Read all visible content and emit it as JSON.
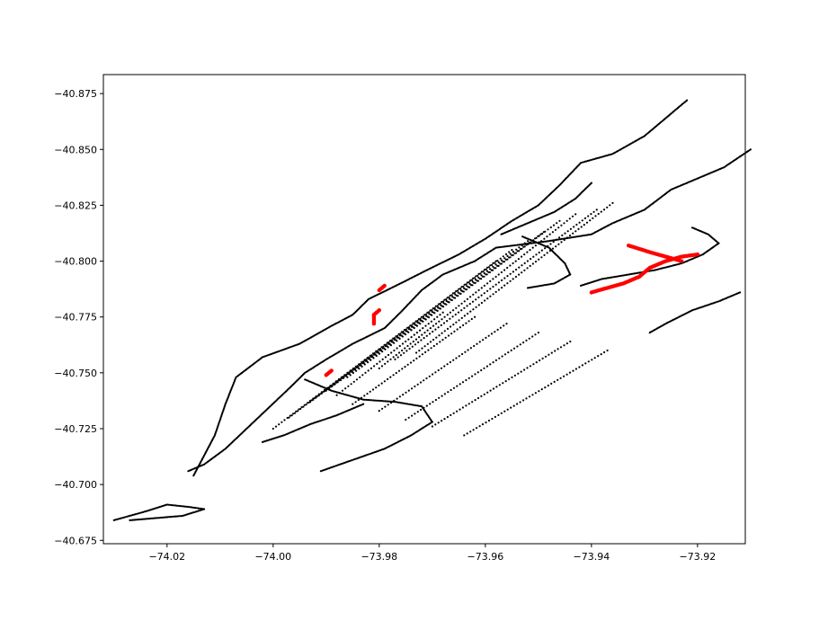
{
  "chart_data": {
    "type": "scatter",
    "title": "",
    "xlabel": "",
    "ylabel": "",
    "xlim": [
      -74.032,
      -73.911
    ],
    "ylim": [
      -40.6735,
      -40.8835
    ],
    "y_inverted": true,
    "grid": false,
    "xticks": [
      {
        "value": -74.02,
        "label": "−74.02"
      },
      {
        "value": -74.0,
        "label": "−74.00"
      },
      {
        "value": -73.98,
        "label": "−73.98"
      },
      {
        "value": -73.96,
        "label": "−73.96"
      },
      {
        "value": -73.94,
        "label": "−73.94"
      },
      {
        "value": -73.92,
        "label": "−73.92"
      }
    ],
    "yticks": [
      {
        "value": -40.875,
        "label": "−40.875"
      },
      {
        "value": -40.85,
        "label": "−40.850"
      },
      {
        "value": -40.825,
        "label": "−40.825"
      },
      {
        "value": -40.8,
        "label": "−40.800"
      },
      {
        "value": -40.775,
        "label": "−40.775"
      },
      {
        "value": -40.75,
        "label": "−40.750"
      },
      {
        "value": -40.725,
        "label": "−40.725"
      },
      {
        "value": -40.7,
        "label": "−40.700"
      },
      {
        "value": -40.675,
        "label": "−40.675"
      }
    ],
    "series": [
      {
        "color": "#000000",
        "paths": [
          [
            [
              -74.015,
              -40.704
            ],
            [
              -74.013,
              -40.713
            ],
            [
              -74.011,
              -40.722
            ],
            [
              -74.009,
              -40.736
            ],
            [
              -74.007,
              -40.748
            ],
            [
              -74.002,
              -40.757
            ],
            [
              -73.995,
              -40.763
            ],
            [
              -73.989,
              -40.771
            ],
            [
              -73.985,
              -40.776
            ],
            [
              -73.982,
              -40.783
            ],
            [
              -73.976,
              -40.79
            ],
            [
              -73.971,
              -40.796
            ],
            [
              -73.965,
              -40.803
            ],
            [
              -73.96,
              -40.81
            ],
            [
              -73.955,
              -40.818
            ],
            [
              -73.95,
              -40.825
            ],
            [
              -73.946,
              -40.834
            ],
            [
              -73.942,
              -40.844
            ],
            [
              -73.936,
              -40.848
            ],
            [
              -73.93,
              -40.856
            ],
            [
              -73.925,
              -40.866
            ],
            [
              -73.922,
              -40.872
            ]
          ],
          [
            [
              -73.91,
              -40.85
            ],
            [
              -73.915,
              -40.842
            ],
            [
              -73.92,
              -40.837
            ],
            [
              -73.925,
              -40.832
            ],
            [
              -73.93,
              -40.823
            ],
            [
              -73.936,
              -40.817
            ],
            [
              -73.94,
              -40.812
            ],
            [
              -73.948,
              -40.809
            ],
            [
              -73.958,
              -40.806
            ],
            [
              -73.962,
              -40.8
            ],
            [
              -73.968,
              -40.794
            ],
            [
              -73.972,
              -40.787
            ],
            [
              -73.976,
              -40.777
            ],
            [
              -73.979,
              -40.77
            ],
            [
              -73.985,
              -40.763
            ],
            [
              -73.99,
              -40.756
            ],
            [
              -73.994,
              -40.75
            ],
            [
              -73.997,
              -40.743
            ],
            [
              -74.001,
              -40.734
            ],
            [
              -74.005,
              -40.725
            ],
            [
              -74.009,
              -40.716
            ],
            [
              -74.013,
              -40.709
            ],
            [
              -74.016,
              -40.706
            ]
          ],
          [
            [
              -74.03,
              -40.684
            ],
            [
              -74.027,
              -40.686
            ],
            [
              -74.024,
              -40.688
            ],
            [
              -74.02,
              -40.691
            ],
            [
              -74.016,
              -40.69
            ],
            [
              -74.013,
              -40.689
            ],
            [
              -74.017,
              -40.686
            ],
            [
              -74.022,
              -40.685
            ],
            [
              -74.027,
              -40.684
            ]
          ],
          [
            [
              -73.994,
              -40.747
            ],
            [
              -73.989,
              -40.742
            ],
            [
              -73.983,
              -40.738
            ],
            [
              -73.977,
              -40.737
            ],
            [
              -73.972,
              -40.735
            ],
            [
              -73.97,
              -40.728
            ],
            [
              -73.974,
              -40.722
            ],
            [
              -73.979,
              -40.716
            ],
            [
              -73.985,
              -40.711
            ],
            [
              -73.991,
              -40.706
            ]
          ],
          [
            [
              -73.953,
              -40.811
            ],
            [
              -73.948,
              -40.806
            ],
            [
              -73.945,
              -40.799
            ],
            [
              -73.944,
              -40.794
            ],
            [
              -73.947,
              -40.79
            ],
            [
              -73.952,
              -40.788
            ]
          ],
          [
            [
              -73.921,
              -40.815
            ],
            [
              -73.918,
              -40.812
            ],
            [
              -73.916,
              -40.808
            ],
            [
              -73.919,
              -40.803
            ],
            [
              -73.923,
              -40.799
            ],
            [
              -73.928,
              -40.796
            ],
            [
              -73.933,
              -40.794
            ],
            [
              -73.938,
              -40.792
            ],
            [
              -73.942,
              -40.789
            ]
          ],
          [
            [
              -73.94,
              -40.835
            ],
            [
              -73.943,
              -40.828
            ],
            [
              -73.947,
              -40.822
            ],
            [
              -73.953,
              -40.816
            ],
            [
              -73.957,
              -40.812
            ]
          ],
          [
            [
              -73.912,
              -40.786
            ],
            [
              -73.916,
              -40.782
            ],
            [
              -73.921,
              -40.778
            ],
            [
              -73.926,
              -40.772
            ],
            [
              -73.929,
              -40.768
            ]
          ],
          [
            [
              -74.002,
              -40.719
            ],
            [
              -73.998,
              -40.722
            ],
            [
              -73.993,
              -40.727
            ],
            [
              -73.988,
              -40.731
            ],
            [
              -73.983,
              -40.736
            ]
          ]
        ],
        "dense_lines": [
          [
            [
              -74.0,
              -40.725
            ],
            [
              -73.958,
              -40.8
            ]
          ],
          [
            [
              -73.997,
              -40.73
            ],
            [
              -73.955,
              -40.805
            ]
          ],
          [
            [
              -73.993,
              -40.737
            ],
            [
              -73.952,
              -40.809
            ]
          ],
          [
            [
              -73.99,
              -40.742
            ],
            [
              -73.949,
              -40.813
            ]
          ],
          [
            [
              -73.986,
              -40.748
            ],
            [
              -73.946,
              -40.818
            ]
          ],
          [
            [
              -73.98,
              -40.752
            ],
            [
              -73.943,
              -40.821
            ]
          ],
          [
            [
              -73.977,
              -40.756
            ],
            [
              -73.939,
              -40.823
            ]
          ],
          [
            [
              -73.973,
              -40.759
            ],
            [
              -73.936,
              -40.826
            ]
          ],
          [
            [
              -73.988,
              -40.74
            ],
            [
              -73.968,
              -40.777
            ]
          ],
          [
            [
              -73.985,
              -40.736
            ],
            [
              -73.962,
              -40.775
            ]
          ],
          [
            [
              -73.98,
              -40.733
            ],
            [
              -73.956,
              -40.772
            ]
          ],
          [
            [
              -73.975,
              -40.729
            ],
            [
              -73.95,
              -40.768
            ]
          ],
          [
            [
              -73.97,
              -40.726
            ],
            [
              -73.944,
              -40.764
            ]
          ],
          [
            [
              -73.964,
              -40.722
            ],
            [
              -73.937,
              -40.76
            ]
          ]
        ]
      },
      {
        "color": "#ff0000",
        "paths": [
          [
            [
              -73.99,
              -40.749
            ],
            [
              -73.989,
              -40.751
            ]
          ],
          [
            [
              -73.98,
              -40.778
            ],
            [
              -73.981,
              -40.776
            ],
            [
              -73.981,
              -40.772
            ]
          ],
          [
            [
              -73.979,
              -40.789
            ],
            [
              -73.98,
              -40.787
            ]
          ],
          [
            [
              -73.94,
              -40.786
            ],
            [
              -73.937,
              -40.788
            ],
            [
              -73.934,
              -40.79
            ],
            [
              -73.931,
              -40.793
            ],
            [
              -73.929,
              -40.797
            ],
            [
              -73.926,
              -40.8
            ],
            [
              -73.923,
              -40.802
            ],
            [
              -73.92,
              -40.803
            ]
          ],
          [
            [
              -73.933,
              -40.807
            ],
            [
              -73.929,
              -40.804
            ],
            [
              -73.926,
              -40.802
            ],
            [
              -73.923,
              -40.8
            ]
          ]
        ],
        "dense_lines": []
      }
    ]
  }
}
